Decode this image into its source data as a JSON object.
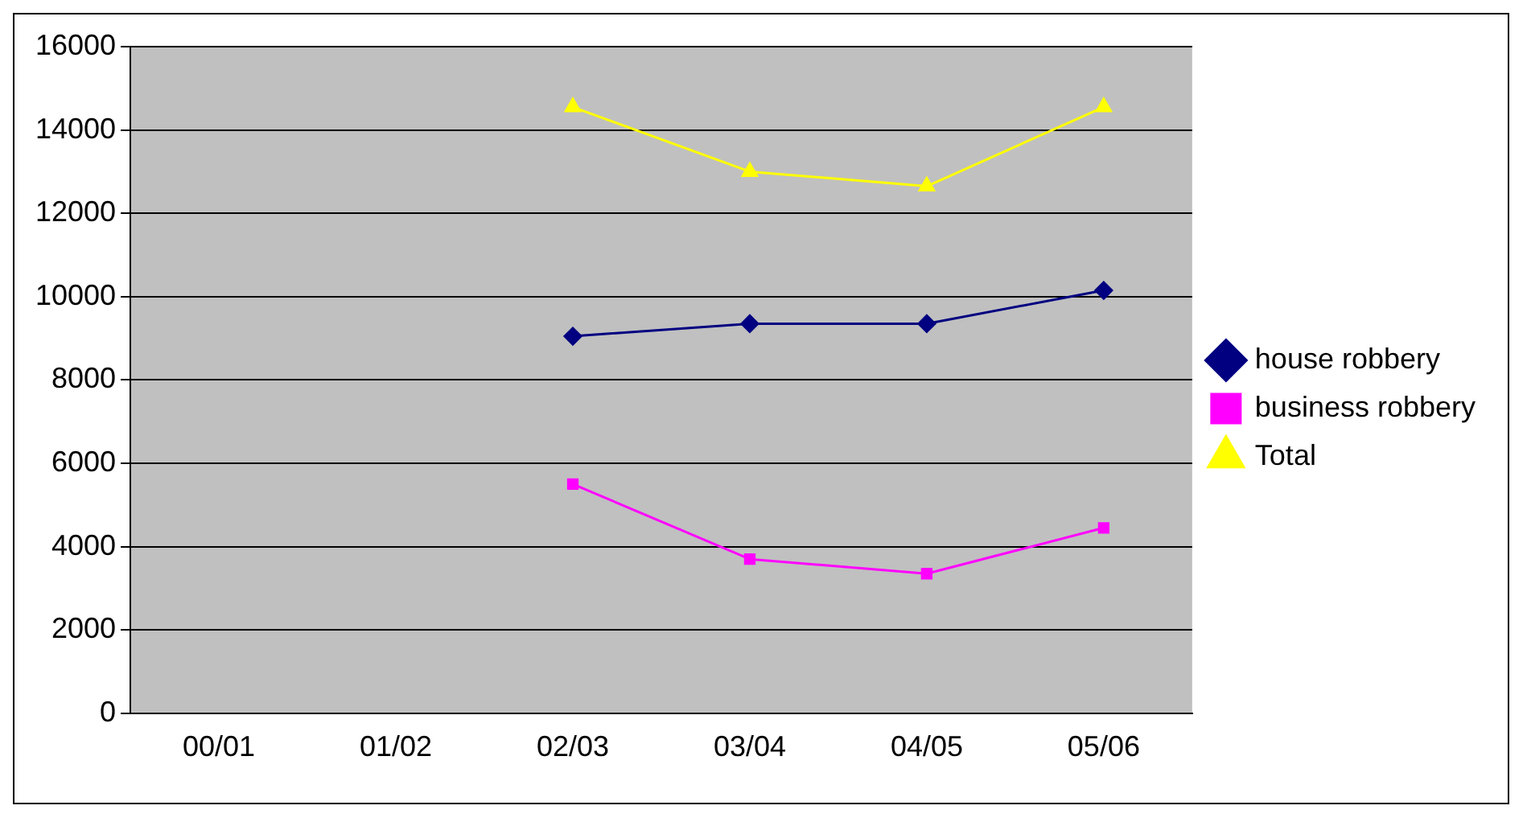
{
  "chart_data": {
    "type": "line",
    "categories": [
      "00/01",
      "01/02",
      "02/03",
      "03/04",
      "04/05",
      "05/06"
    ],
    "series": [
      {
        "name": "house robbery",
        "color": "#000080",
        "marker": "diamond",
        "values": [
          null,
          null,
          9050,
          9350,
          9350,
          10150
        ]
      },
      {
        "name": "business robbery",
        "color": "#ff00ff",
        "marker": "square",
        "values": [
          null,
          null,
          5500,
          3700,
          3350,
          4450
        ]
      },
      {
        "name": "Total",
        "color": "#ffff00",
        "marker": "triangle",
        "values": [
          null,
          null,
          14550,
          13000,
          12650,
          14550
        ]
      }
    ],
    "ylim": [
      0,
      16000
    ],
    "yticks": [
      0,
      2000,
      4000,
      6000,
      8000,
      10000,
      12000,
      14000,
      16000
    ],
    "grid": "y",
    "legend": "right",
    "line_style": "solid"
  }
}
